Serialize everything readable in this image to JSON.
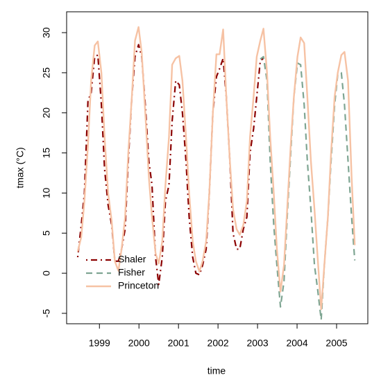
{
  "chart_data": {
    "type": "line",
    "xlabel": "time",
    "ylabel": "tmax (°C)",
    "xlim": [
      1998.17,
      2005.79
    ],
    "ylim": [
      -6.3,
      32.6
    ],
    "xticks": [
      1999,
      2000,
      2001,
      2002,
      2003,
      2004,
      2005
    ],
    "yticks": [
      -5,
      0,
      5,
      10,
      15,
      20,
      25,
      30
    ],
    "legend": "bottomleft",
    "x": [
      1998.45,
      1998.54,
      1998.62,
      1998.71,
      1998.79,
      1998.88,
      1998.96,
      1999.05,
      1999.13,
      1999.22,
      1999.31,
      1999.39,
      1999.48,
      1999.56,
      1999.65,
      1999.73,
      1999.82,
      1999.9,
      1999.99,
      2000.07,
      2000.16,
      2000.25,
      2000.33,
      2000.42,
      2000.5,
      2000.59,
      2000.67,
      2000.76,
      2000.84,
      2000.93,
      2001.02,
      2001.1,
      2001.19,
      2001.27,
      2001.36,
      2001.44,
      2001.53,
      2001.61,
      2001.7,
      2001.78,
      2001.87,
      2001.96,
      2002.04,
      2002.13,
      2002.21,
      2002.3,
      2002.38,
      2002.47,
      2002.55,
      2002.64,
      2002.73,
      2002.81,
      2002.9,
      2002.98,
      2003.07,
      2003.15,
      2003.24,
      2003.32,
      2003.41,
      2003.49,
      2003.58,
      2003.67,
      2003.75,
      2003.84,
      2003.92,
      2004.01,
      2004.09,
      2004.18,
      2004.26,
      2004.35,
      2004.44,
      2004.52,
      2004.61,
      2004.69,
      2004.78,
      2004.86,
      2004.95,
      2005.03,
      2005.12,
      2005.2,
      2005.29,
      2005.38,
      2005.46
    ],
    "series": [
      {
        "name": "Shaler",
        "color": "#8b0000",
        "dash": "dotdash",
        "width": 2.2,
        "values": [
          2,
          6,
          10,
          21.5,
          22.5,
          27,
          27.2,
          21,
          13,
          8.5,
          6,
          1.5,
          1.5,
          3,
          5.5,
          14,
          22,
          27,
          28.5,
          27,
          21,
          14,
          11,
          2,
          -1.4,
          2,
          9,
          11,
          19,
          24,
          23.5,
          20,
          14,
          7,
          2,
          0,
          -0.2,
          1,
          3,
          10,
          20,
          24.5,
          25.5,
          26.8,
          22,
          14,
          5,
          3,
          3,
          5.5,
          7,
          15,
          18,
          22,
          26.5,
          26.8,
          null,
          null,
          null,
          null,
          null,
          null,
          null,
          null,
          null,
          null,
          null,
          null,
          null,
          null,
          null,
          null,
          null,
          null,
          null,
          null,
          null,
          null,
          null,
          null,
          null,
          null,
          null
        ]
      },
      {
        "name": "Fisher",
        "color": "#7ea592",
        "dash": "dashed",
        "width": 2.2,
        "values": [
          null,
          null,
          null,
          null,
          null,
          null,
          null,
          null,
          null,
          null,
          null,
          null,
          null,
          null,
          null,
          null,
          null,
          null,
          null,
          null,
          null,
          null,
          null,
          null,
          null,
          null,
          null,
          null,
          null,
          null,
          null,
          null,
          null,
          null,
          null,
          null,
          null,
          null,
          null,
          null,
          null,
          null,
          null,
          null,
          null,
          null,
          null,
          null,
          null,
          null,
          null,
          null,
          null,
          null,
          26.7,
          27,
          24,
          14,
          6,
          1,
          -4.2,
          -1,
          7,
          15,
          22,
          26.2,
          26,
          21,
          14,
          8,
          1,
          -2,
          -5.8,
          1,
          7,
          14,
          21,
          24.8,
          25,
          21,
          14,
          7,
          1.6
        ]
      },
      {
        "name": "Princeton",
        "color": "#f6c2a4",
        "dash": "solid",
        "width": 2.4,
        "values": [
          2.7,
          4.5,
          9,
          16,
          24,
          28.4,
          28.9,
          25,
          17,
          10,
          6.5,
          1.5,
          0.3,
          3,
          7,
          15,
          22,
          29,
          30.7,
          27.5,
          20,
          12,
          7,
          2.5,
          1.2,
          4,
          11,
          17,
          26,
          26.8,
          27.1,
          24,
          17,
          10,
          4,
          1.5,
          0.2,
          1.5,
          4,
          10,
          20,
          27.3,
          27.3,
          30.4,
          22,
          14,
          8,
          5.5,
          4.8,
          6,
          9,
          17,
          22,
          27,
          29,
          30.5,
          25,
          17,
          10,
          3,
          -2.3,
          1,
          8,
          16,
          22,
          27,
          29.4,
          28.7,
          22,
          14,
          8,
          2,
          -4.5,
          1,
          7,
          15,
          22,
          25,
          27.2,
          27.6,
          24,
          12,
          3.5
        ]
      }
    ]
  }
}
